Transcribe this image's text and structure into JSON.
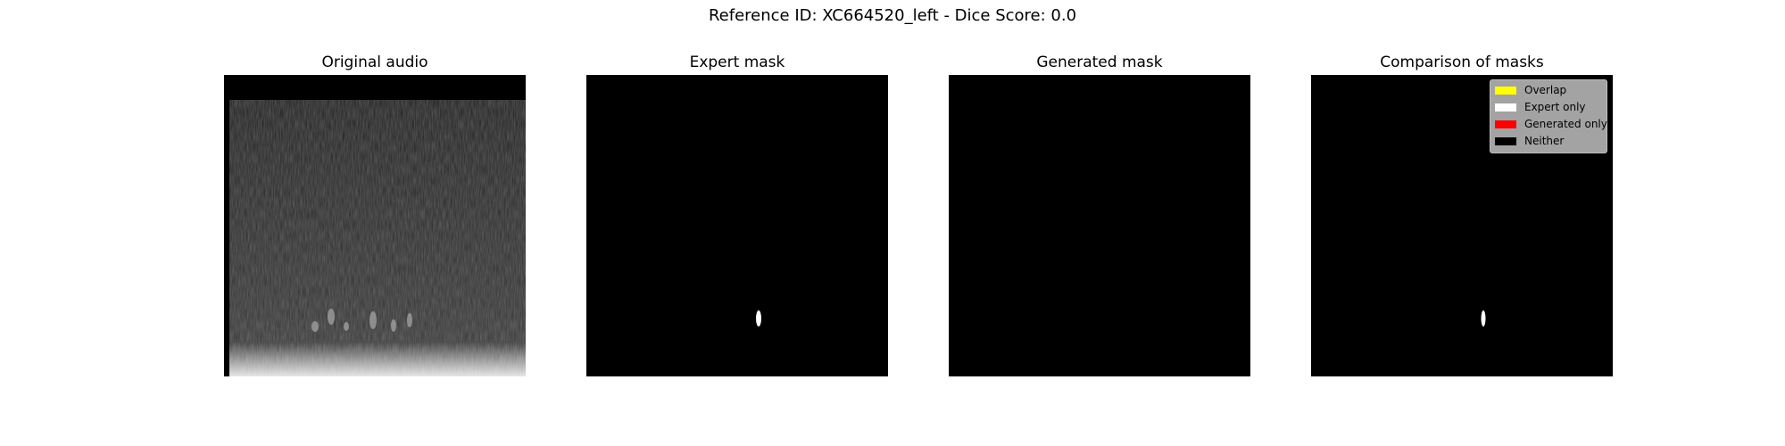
{
  "figure": {
    "suptitle": "Reference ID: XC664520_left - Dice Score: 0.0"
  },
  "panels": [
    {
      "title": "Original audio",
      "kind": "spectrogram"
    },
    {
      "title": "Expert mask",
      "kind": "binary-mask"
    },
    {
      "title": "Generated mask",
      "kind": "binary-mask"
    },
    {
      "title": "Comparison of masks",
      "kind": "mask-comparison"
    }
  ],
  "legend": {
    "items": [
      {
        "label": "Overlap",
        "color": "#ffff00"
      },
      {
        "label": "Expert only",
        "color": "#ffffff"
      },
      {
        "label": "Generated only",
        "color": "#ff0000"
      },
      {
        "label": "Neither",
        "color": "#000000"
      }
    ]
  },
  "colors": {
    "background": "#ffffff",
    "mask_background": "#000000",
    "expert_mask": "#ffffff"
  }
}
